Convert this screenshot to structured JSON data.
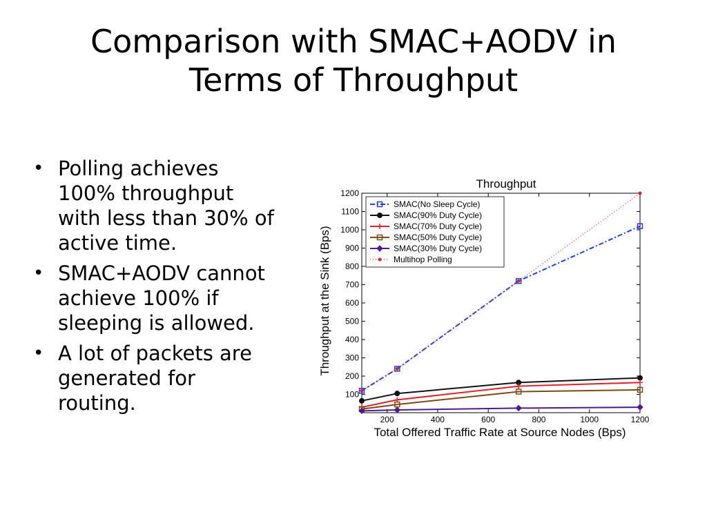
{
  "slide": {
    "title_line1": "Comparison with SMAC+AODV in",
    "title_line2": "Terms of Throughput",
    "bullets": [
      "Polling achieves 100% throughput with less than 30% of active time.",
      "SMAC+AODV cannot achieve 100% if sleeping is allowed.",
      "A lot of packets are generated for routing."
    ]
  },
  "chart_data": {
    "type": "line",
    "title": "Throughput",
    "xlabel": "Total Offered Traffic Rate at Source Nodes (Bps)",
    "ylabel": "Throughput at the Sink (Bps)",
    "xlim": [
      100,
      1200
    ],
    "ylim": [
      0,
      1200
    ],
    "xticks": [
      200,
      400,
      600,
      800,
      1000,
      1200
    ],
    "yticks": [
      100,
      200,
      300,
      400,
      500,
      600,
      700,
      800,
      900,
      1000,
      1100,
      1200
    ],
    "grid": false,
    "legend_position": "top-left",
    "series": [
      {
        "name": "SMAC(No Sleep Cycle)",
        "color": "#1f3fd6",
        "dash": "dashdot",
        "marker": "square",
        "x": [
          100,
          240,
          720,
          1200
        ],
        "y": [
          120,
          240,
          720,
          1020
        ]
      },
      {
        "name": "SMAC(90% Duty Cycle)",
        "color": "#111111",
        "dash": "solid",
        "marker": "circle",
        "x": [
          100,
          240,
          720,
          1200
        ],
        "y": [
          65,
          105,
          165,
          190
        ]
      },
      {
        "name": "SMAC(70% Duty Cycle)",
        "color": "#e0202a",
        "dash": "solid",
        "marker": "plus",
        "x": [
          100,
          240,
          720,
          1200
        ],
        "y": [
          30,
          70,
          145,
          165
        ]
      },
      {
        "name": "SMAC(50% Duty Cycle)",
        "color": "#7a4a14",
        "dash": "solid",
        "marker": "square",
        "x": [
          100,
          240,
          720,
          1200
        ],
        "y": [
          20,
          45,
          115,
          125
        ]
      },
      {
        "name": "SMAC(30% Duty Cycle)",
        "color": "#4b1a8c",
        "dash": "solid",
        "marker": "diamond",
        "x": [
          100,
          240,
          720,
          1200
        ],
        "y": [
          10,
          15,
          25,
          30
        ]
      },
      {
        "name": "Multihop Polling",
        "color": "#e02020",
        "dash": "dotted",
        "marker": "dot",
        "x": [
          100,
          240,
          720,
          1200
        ],
        "y": [
          120,
          240,
          720,
          1200
        ]
      }
    ]
  }
}
